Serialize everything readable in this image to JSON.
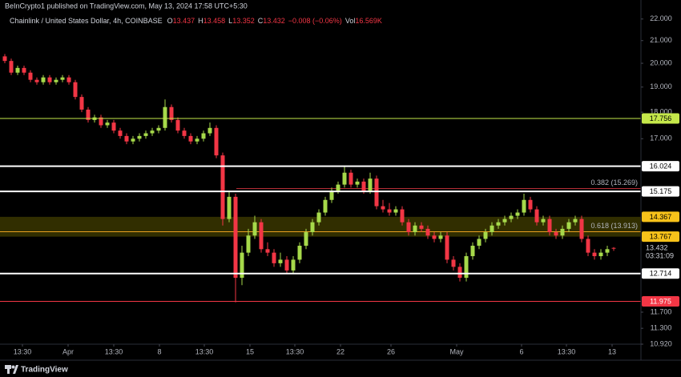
{
  "header": {
    "published": "BeInCrypto1 published on TradingView.com, May 13, 2024 17:58 UTC+5:30",
    "symbol": "Chainlink / United States Dollar, 4h, COINBASE",
    "readout_labels": [
      "O",
      "H",
      "L",
      "C"
    ],
    "change": "−0.008 (−0.06%)",
    "volume_label": "Vol",
    "volume": "16.569K",
    "countdown": "03:31:09"
  },
  "footer": {
    "brand": "TradingView"
  },
  "chart_data": {
    "type": "candlestick",
    "log_scale": true,
    "up_color": "#a6d94a",
    "down_color": "#f23645",
    "open": [
      20.3,
      20.1,
      19.6,
      19.8,
      19.6,
      19.3,
      19.2,
      19.4,
      19.2,
      19.3,
      19.4,
      19.2,
      18.6,
      18.1,
      17.7,
      17.8,
      17.5,
      17.6,
      17.3,
      17.1,
      16.9,
      17.0,
      17.1,
      17.2,
      17.3,
      17.4,
      18.2,
      17.7,
      17.3,
      17.1,
      16.9,
      17.0,
      17.2,
      17.4,
      16.4,
      14.3,
      15.0,
      12.6,
      13.3,
      13.8,
      14.2,
      13.4,
      13.3,
      13.0,
      13.1,
      12.8,
      13.1,
      13.5,
      13.9,
      14.2,
      14.5,
      14.9,
      15.2,
      15.4,
      15.8,
      15.4,
      15.5,
      15.2,
      15.6,
      14.7,
      14.6,
      14.5,
      14.6,
      14.2,
      13.9,
      14.1,
      14.0,
      13.8,
      13.7,
      13.8,
      13.1,
      12.9,
      12.6,
      13.2,
      13.5,
      13.7,
      13.9,
      14.1,
      14.2,
      14.3,
      14.4,
      14.5,
      14.9,
      14.6,
      14.2,
      14.3,
      13.9,
      13.8,
      14.0,
      14.2,
      14.3,
      13.7,
      13.3,
      13.2,
      13.3,
      13.437
    ],
    "high": [
      20.4,
      20.2,
      19.9,
      19.9,
      19.7,
      19.4,
      19.5,
      19.5,
      19.4,
      19.5,
      19.5,
      19.3,
      18.7,
      18.2,
      17.9,
      17.9,
      17.7,
      17.7,
      17.4,
      17.2,
      17.1,
      17.2,
      17.3,
      17.4,
      17.5,
      18.5,
      18.3,
      17.8,
      17.4,
      17.2,
      17.1,
      17.3,
      17.6,
      17.5,
      16.5,
      15.2,
      15.1,
      13.5,
      14.0,
      14.4,
      14.3,
      13.6,
      13.4,
      13.3,
      13.2,
      13.2,
      13.6,
      14.0,
      14.3,
      14.6,
      15.0,
      15.3,
      15.5,
      16.0,
      15.9,
      15.6,
      15.6,
      15.8,
      15.7,
      14.9,
      14.8,
      14.7,
      14.7,
      14.3,
      14.2,
      14.2,
      14.1,
      13.9,
      13.9,
      13.9,
      13.2,
      13.0,
      13.3,
      13.6,
      13.8,
      14.0,
      14.2,
      14.3,
      14.4,
      14.5,
      14.6,
      15.1,
      15.0,
      14.7,
      14.4,
      14.4,
      14.0,
      14.1,
      14.3,
      14.4,
      14.4,
      13.8,
      13.4,
      13.4,
      13.5,
      13.458
    ],
    "low": [
      20.0,
      19.5,
      19.5,
      19.5,
      19.2,
      19.1,
      19.1,
      19.1,
      19.1,
      19.2,
      19.1,
      18.5,
      18.0,
      17.6,
      17.6,
      17.4,
      17.4,
      17.2,
      17.0,
      16.8,
      16.8,
      16.9,
      17.0,
      17.1,
      17.2,
      17.3,
      17.6,
      17.2,
      17.0,
      16.8,
      16.8,
      16.9,
      17.1,
      16.3,
      14.1,
      14.2,
      11.95,
      12.4,
      13.2,
      13.7,
      13.3,
      13.2,
      12.9,
      12.9,
      12.7,
      12.7,
      13.0,
      13.4,
      13.8,
      14.1,
      14.4,
      14.8,
      15.1,
      15.3,
      15.3,
      15.3,
      15.1,
      15.1,
      14.6,
      14.5,
      14.4,
      14.4,
      14.1,
      13.8,
      13.8,
      13.9,
      13.7,
      13.6,
      13.6,
      13.0,
      12.8,
      12.5,
      12.5,
      13.1,
      13.4,
      13.6,
      13.8,
      14.0,
      14.1,
      14.2,
      14.3,
      14.4,
      14.5,
      14.1,
      14.1,
      13.8,
      13.7,
      13.7,
      13.9,
      14.1,
      13.6,
      13.2,
      13.1,
      13.1,
      13.2,
      13.352
    ],
    "close": [
      20.1,
      19.6,
      19.8,
      19.6,
      19.3,
      19.2,
      19.4,
      19.2,
      19.3,
      19.4,
      19.2,
      18.6,
      18.1,
      17.7,
      17.8,
      17.5,
      17.6,
      17.3,
      17.1,
      16.9,
      17.0,
      17.1,
      17.2,
      17.3,
      17.4,
      18.2,
      17.7,
      17.3,
      17.1,
      16.9,
      17.0,
      17.2,
      17.4,
      16.4,
      14.3,
      15.0,
      12.6,
      13.3,
      13.8,
      14.2,
      13.4,
      13.3,
      13.0,
      13.1,
      12.8,
      13.1,
      13.5,
      13.9,
      14.2,
      14.5,
      14.9,
      15.2,
      15.4,
      15.8,
      15.4,
      15.5,
      15.2,
      15.6,
      14.7,
      14.6,
      14.5,
      14.6,
      14.2,
      13.9,
      14.1,
      14.0,
      13.8,
      13.7,
      13.8,
      13.1,
      12.9,
      12.6,
      13.2,
      13.5,
      13.7,
      13.9,
      14.1,
      14.2,
      14.3,
      14.4,
      14.5,
      14.9,
      14.6,
      14.2,
      14.3,
      13.9,
      13.8,
      14.0,
      14.2,
      14.3,
      13.7,
      13.3,
      13.2,
      13.3,
      13.4,
      13.432
    ],
    "xlim": [
      -0.75,
      99.25
    ],
    "xticks": [
      {
        "value": 2.75,
        "label": "13:30"
      },
      {
        "value": 9.875,
        "label": "Apr"
      },
      {
        "value": 17,
        "label": "13:30"
      },
      {
        "value": 24.125,
        "label": "8"
      },
      {
        "value": 31.125,
        "label": "13:30"
      },
      {
        "value": 38.25,
        "label": "15"
      },
      {
        "value": 45.25,
        "label": "13:30"
      },
      {
        "value": 52.375,
        "label": "22"
      },
      {
        "value": 60.25,
        "label": "26"
      },
      {
        "value": 70.5,
        "label": "May"
      },
      {
        "value": 80.625,
        "label": "6"
      },
      {
        "value": 87.625,
        "label": "13:30"
      },
      {
        "value": 94.75,
        "label": "13"
      }
    ],
    "ylim": [
      10.92,
      22.92
    ],
    "yticks": [
      {
        "value": 22,
        "label": "22.000"
      },
      {
        "value": 21,
        "label": "21.000"
      },
      {
        "value": 20,
        "label": "20.000"
      },
      {
        "value": 19,
        "label": "19.000"
      },
      {
        "value": 18,
        "label": "18.000"
      },
      {
        "value": 17,
        "label": "17.000"
      },
      {
        "value": 11.7,
        "label": "11.700"
      },
      {
        "value": 11.3,
        "label": "11.300"
      },
      {
        "value": 10.92,
        "label": "10.920"
      }
    ],
    "levels": [
      {
        "value": 17.756,
        "color": "#c5e84a",
        "text_color": "#000000"
      },
      {
        "value": 16.024,
        "color": "#ffffff",
        "text_color": "#000000"
      },
      {
        "value": 15.175,
        "color": "#ffffff",
        "text_color": "#000000"
      },
      {
        "value": 12.714,
        "color": "#ffffff",
        "text_color": "#000000"
      },
      {
        "value": 11.975,
        "color": "#f23645",
        "text_color": "#ffffff"
      }
    ],
    "zone": {
      "top": 14.367,
      "bottom": 13.767,
      "color": "#3a3600",
      "badge_color": "#f7c21a"
    },
    "fib": [
      {
        "label": "0.382 (15.269)",
        "value": 15.269,
        "color": "#c8323c"
      },
      {
        "label": "0.618 (13.913)",
        "value": 13.913,
        "color": "#e8a020"
      }
    ]
  }
}
